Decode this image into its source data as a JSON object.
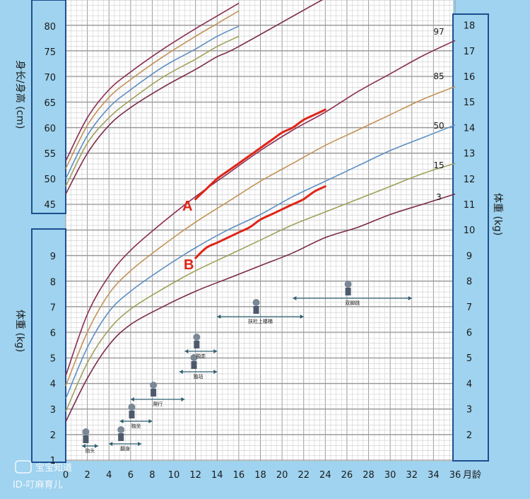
{
  "chart_data": {
    "type": "line",
    "x": {
      "label": "月龄",
      "range": [
        0,
        36
      ],
      "ticks": [
        0,
        2,
        4,
        6,
        8,
        10,
        12,
        14,
        16,
        18,
        20,
        22,
        24,
        26,
        28,
        30,
        32,
        34,
        36
      ]
    },
    "length_axis": {
      "label": "身长/身高 (cm)",
      "range": [
        45,
        80
      ],
      "ticks": [
        45,
        50,
        55,
        60,
        65,
        70,
        75,
        80
      ]
    },
    "weight_axis_left": {
      "label": "体重 (kg)",
      "range": [
        1,
        9
      ],
      "ticks": [
        1,
        2,
        3,
        4,
        5,
        6,
        7,
        8,
        9
      ]
    },
    "weight_axis_right": {
      "label": "体重 (kg)",
      "range": [
        1,
        18
      ],
      "ticks": [
        2,
        3,
        4,
        5,
        6,
        7,
        8,
        9,
        10,
        11,
        12,
        13,
        14,
        15,
        16,
        17,
        18
      ]
    },
    "weight_percentiles": [
      {
        "name": "97",
        "color": "#8a2e52",
        "points": [
          [
            0,
            4.3
          ],
          [
            2,
            6.7
          ],
          [
            4,
            8.2
          ],
          [
            6,
            9.2
          ],
          [
            9,
            10.3
          ],
          [
            12,
            11.3
          ],
          [
            15,
            12.2
          ],
          [
            18,
            13.1
          ],
          [
            21,
            13.9
          ],
          [
            24,
            14.6
          ],
          [
            27,
            15.4
          ],
          [
            30,
            16.1
          ],
          [
            33,
            16.8
          ],
          [
            36,
            17.4
          ]
        ]
      },
      {
        "name": "85",
        "color": "#c29357",
        "points": [
          [
            0,
            3.9
          ],
          [
            2,
            6.0
          ],
          [
            4,
            7.5
          ],
          [
            6,
            8.4
          ],
          [
            9,
            9.4
          ],
          [
            12,
            10.3
          ],
          [
            15,
            11.1
          ],
          [
            18,
            11.9
          ],
          [
            21,
            12.6
          ],
          [
            24,
            13.3
          ],
          [
            27,
            13.9
          ],
          [
            30,
            14.5
          ],
          [
            33,
            15.1
          ],
          [
            36,
            15.6
          ]
        ]
      },
      {
        "name": "50",
        "color": "#5d8fc2",
        "points": [
          [
            0,
            3.4
          ],
          [
            2,
            5.4
          ],
          [
            4,
            6.8
          ],
          [
            6,
            7.6
          ],
          [
            9,
            8.5
          ],
          [
            12,
            9.3
          ],
          [
            15,
            10.0
          ],
          [
            18,
            10.6
          ],
          [
            21,
            11.3
          ],
          [
            24,
            11.9
          ],
          [
            27,
            12.5
          ],
          [
            30,
            13.1
          ],
          [
            33,
            13.6
          ],
          [
            36,
            14.1
          ]
        ]
      },
      {
        "name": "15",
        "color": "#a0a05a",
        "points": [
          [
            0,
            2.9
          ],
          [
            2,
            4.8
          ],
          [
            4,
            6.1
          ],
          [
            6,
            6.9
          ],
          [
            9,
            7.7
          ],
          [
            12,
            8.4
          ],
          [
            15,
            9.0
          ],
          [
            18,
            9.6
          ],
          [
            21,
            10.2
          ],
          [
            24,
            10.7
          ],
          [
            27,
            11.2
          ],
          [
            30,
            11.7
          ],
          [
            33,
            12.2
          ],
          [
            36,
            12.6
          ]
        ]
      },
      {
        "name": "3",
        "color": "#7b2a4a",
        "points": [
          [
            0,
            2.5
          ],
          [
            2,
            4.2
          ],
          [
            4,
            5.5
          ],
          [
            6,
            6.3
          ],
          [
            9,
            7.0
          ],
          [
            12,
            7.6
          ],
          [
            15,
            8.1
          ],
          [
            18,
            8.6
          ],
          [
            21,
            9.1
          ],
          [
            24,
            9.7
          ],
          [
            27,
            10.1
          ],
          [
            30,
            10.6
          ],
          [
            33,
            11.0
          ],
          [
            36,
            11.4
          ]
        ]
      }
    ],
    "length_percentiles": [
      {
        "name": "97",
        "color": "#8a2e52",
        "points": [
          [
            0,
            53.5
          ],
          [
            2,
            62.0
          ],
          [
            4,
            67.5
          ],
          [
            6,
            71.0
          ],
          [
            9,
            75.5
          ],
          [
            12,
            79.5
          ],
          [
            14,
            82.0
          ],
          [
            16,
            84.5
          ]
        ]
      },
      {
        "name": "85",
        "color": "#c29357",
        "points": [
          [
            0,
            52.0
          ],
          [
            2,
            60.5
          ],
          [
            4,
            66.0
          ],
          [
            6,
            69.5
          ],
          [
            9,
            74.0
          ],
          [
            12,
            78.0
          ],
          [
            14,
            80.5
          ],
          [
            16,
            83.0
          ]
        ]
      },
      {
        "name": "50",
        "color": "#5d8fc2",
        "points": [
          [
            0,
            50.0
          ],
          [
            2,
            58.5
          ],
          [
            4,
            64.0
          ],
          [
            6,
            67.5
          ],
          [
            9,
            72.0
          ],
          [
            12,
            75.5
          ],
          [
            14,
            78.0
          ],
          [
            16,
            80.0
          ]
        ]
      },
      {
        "name": "15",
        "color": "#a0a05a",
        "points": [
          [
            0,
            48.5
          ],
          [
            2,
            57.0
          ],
          [
            4,
            62.0
          ],
          [
            6,
            65.5
          ],
          [
            9,
            70.0
          ],
          [
            12,
            73.5
          ],
          [
            14,
            76.0
          ],
          [
            16,
            78.0
          ]
        ]
      },
      {
        "name": "3",
        "color": "#7b2a4a",
        "points": [
          [
            0,
            47.0
          ],
          [
            2,
            55.0
          ],
          [
            4,
            60.5
          ],
          [
            6,
            64.0
          ],
          [
            9,
            68.0
          ],
          [
            12,
            71.5
          ],
          [
            14,
            74.0
          ],
          [
            16,
            76.0
          ],
          [
            24,
            85.5
          ],
          [
            26,
            87.5
          ]
        ]
      }
    ],
    "curve_A": {
      "name": "A",
      "axis": "weight_right",
      "color": "#e02416",
      "points": [
        [
          12,
          11.2
        ],
        [
          13,
          11.6
        ],
        [
          14,
          12.0
        ],
        [
          15,
          12.3
        ],
        [
          16,
          12.6
        ],
        [
          17,
          12.9
        ],
        [
          18,
          13.2
        ],
        [
          19,
          13.5
        ],
        [
          20,
          13.8
        ],
        [
          21,
          14.0
        ],
        [
          22,
          14.3
        ],
        [
          23,
          14.5
        ],
        [
          24,
          14.7
        ]
      ]
    },
    "curve_B": {
      "name": "B",
      "axis": "weight_right",
      "color": "#e02416",
      "points": [
        [
          12,
          8.9
        ],
        [
          13,
          9.3
        ],
        [
          14,
          9.5
        ],
        [
          15,
          9.7
        ],
        [
          16,
          9.9
        ],
        [
          17,
          10.1
        ],
        [
          18,
          10.4
        ],
        [
          19,
          10.6
        ],
        [
          20,
          10.8
        ],
        [
          21,
          11.0
        ],
        [
          22,
          11.2
        ],
        [
          23,
          11.5
        ],
        [
          24,
          11.7
        ]
      ]
    },
    "milestones": [
      {
        "label": "抬头",
        "range": [
          1.5,
          3
        ]
      },
      {
        "label": "翻身",
        "range": [
          4,
          7
        ]
      },
      {
        "label": "独坐",
        "range": [
          5,
          8
        ]
      },
      {
        "label": "爬行",
        "range": [
          6,
          11
        ]
      },
      {
        "label": "独站",
        "range": [
          10.5,
          14
        ]
      },
      {
        "label": "独走",
        "range": [
          11,
          14
        ]
      },
      {
        "label": "扶栏上楼梯",
        "range": [
          14,
          22
        ]
      },
      {
        "label": "双脚跳",
        "range": [
          21,
          32
        ]
      }
    ]
  },
  "watermark": {
    "line1": "宝宝知道",
    "line2": "ID-叮麻育儿"
  },
  "colors": {
    "background": "#9fd3ef",
    "grid_paper": "#ffffff",
    "grid_line": "#b8b8b8",
    "highlight": "#e02416"
  }
}
